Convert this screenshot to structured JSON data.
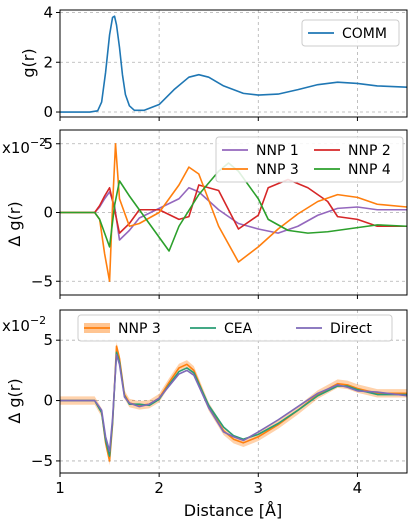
{
  "chart_data": [
    {
      "type": "line",
      "ylabel": "g(r)",
      "xlabel": "",
      "xlim": [
        1,
        4.5
      ],
      "ylim": [
        -0.2,
        4.1
      ],
      "yticks": [
        0,
        2,
        4
      ],
      "xticks": [
        1,
        2,
        3,
        4
      ],
      "ytick_labels": [
        "0",
        "2",
        "4"
      ],
      "grid": true,
      "legend_position": "top-right",
      "series": [
        {
          "name": "COMM",
          "color": "#1f77b4",
          "x": [
            1.0,
            1.3,
            1.38,
            1.42,
            1.46,
            1.5,
            1.53,
            1.55,
            1.57,
            1.6,
            1.63,
            1.66,
            1.7,
            1.75,
            1.85,
            2.0,
            2.15,
            2.3,
            2.4,
            2.5,
            2.65,
            2.85,
            3.0,
            3.2,
            3.4,
            3.6,
            3.8,
            4.0,
            4.2,
            4.5
          ],
          "y": [
            0.0,
            0.0,
            0.05,
            0.4,
            1.6,
            3.1,
            3.8,
            3.85,
            3.5,
            2.6,
            1.5,
            0.7,
            0.25,
            0.07,
            0.07,
            0.3,
            0.9,
            1.4,
            1.5,
            1.4,
            1.05,
            0.75,
            0.68,
            0.72,
            0.9,
            1.1,
            1.2,
            1.15,
            1.05,
            1.0
          ]
        }
      ]
    },
    {
      "type": "line",
      "ylabel": "Δ g(r)",
      "xlabel": "",
      "scale_label": "x10",
      "scale_exp": "−2",
      "xlim": [
        1,
        4.5
      ],
      "ylim": [
        -6,
        6
      ],
      "yticks": [
        -5,
        0,
        5
      ],
      "xticks": [
        1,
        2,
        3,
        4
      ],
      "ytick_labels": [
        "−5",
        "0",
        "5"
      ],
      "grid": true,
      "legend_position": "top-right",
      "legend_columns": 2,
      "series": [
        {
          "name": "NNP 1",
          "color": "#9467bd",
          "x": [
            1.0,
            1.35,
            1.4,
            1.45,
            1.5,
            1.55,
            1.6,
            1.7,
            1.8,
            2.0,
            2.2,
            2.3,
            2.4,
            2.6,
            2.8,
            3.0,
            3.2,
            3.4,
            3.6,
            3.8,
            4.0,
            4.2,
            4.5
          ],
          "y": [
            0,
            0,
            0.4,
            1.0,
            1.5,
            0.5,
            -2.0,
            -1.3,
            -0.4,
            0.3,
            1.0,
            1.8,
            1.5,
            0.2,
            -0.8,
            -1.2,
            -1.5,
            -1.0,
            -0.2,
            0.3,
            0.4,
            0.2,
            0.2
          ]
        },
        {
          "name": "NNP 2",
          "color": "#d62728",
          "x": [
            1.0,
            1.35,
            1.4,
            1.45,
            1.5,
            1.55,
            1.6,
            1.7,
            1.8,
            2.0,
            2.2,
            2.3,
            2.4,
            2.6,
            2.7,
            2.8,
            3.0,
            3.1,
            3.3,
            3.5,
            3.7,
            3.8,
            4.0,
            4.2,
            4.5
          ],
          "y": [
            0,
            0,
            0.5,
            1.2,
            1.8,
            0.2,
            -1.5,
            -0.8,
            0.2,
            0.2,
            -0.5,
            -0.3,
            2.0,
            1.6,
            0.2,
            -1.2,
            -0.2,
            1.8,
            2.4,
            1.8,
            0.8,
            -0.3,
            -0.5,
            -1.0,
            -1.0
          ]
        },
        {
          "name": "NNP 3",
          "color": "#ff7f0e",
          "x": [
            1.0,
            1.35,
            1.4,
            1.45,
            1.5,
            1.53,
            1.56,
            1.6,
            1.7,
            1.8,
            2.0,
            2.2,
            2.3,
            2.4,
            2.6,
            2.8,
            3.0,
            3.2,
            3.4,
            3.6,
            3.8,
            4.0,
            4.2,
            4.5
          ],
          "y": [
            0,
            0,
            -0.5,
            -3.0,
            -5.0,
            0.5,
            5.0,
            1.0,
            -1.0,
            -0.8,
            0.0,
            2.0,
            3.3,
            2.8,
            -1.0,
            -3.6,
            -2.5,
            -1.2,
            -0.1,
            0.8,
            1.3,
            1.1,
            0.6,
            0.4
          ]
        },
        {
          "name": "NNP 4",
          "color": "#2ca02c",
          "x": [
            1.0,
            1.35,
            1.4,
            1.45,
            1.5,
            1.55,
            1.6,
            1.7,
            1.8,
            2.0,
            2.1,
            2.2,
            2.4,
            2.6,
            2.7,
            2.8,
            3.0,
            3.1,
            3.3,
            3.5,
            3.7,
            4.0,
            4.2,
            4.5
          ],
          "y": [
            0,
            0,
            -0.5,
            -1.5,
            -2.5,
            0.5,
            2.3,
            1.2,
            0.2,
            -1.8,
            -2.8,
            -1.0,
            1.3,
            3.0,
            3.6,
            3.0,
            1.0,
            -0.5,
            -1.3,
            -1.5,
            -1.4,
            -1.1,
            -0.9,
            -1.0
          ]
        }
      ]
    },
    {
      "type": "line",
      "ylabel": "Δ g(r)",
      "xlabel": "Distance [Å]",
      "scale_label": "x10",
      "scale_exp": "−2",
      "xlim": [
        1,
        4.5
      ],
      "ylim": [
        -6,
        7.5
      ],
      "yticks": [
        -5,
        0,
        5
      ],
      "xticks": [
        1,
        2,
        3,
        4
      ],
      "ytick_labels": [
        "−5",
        "0",
        "5"
      ],
      "xtick_labels": [
        "1",
        "2",
        "3",
        "4"
      ],
      "grid": true,
      "legend_position": "top",
      "legend_columns": 3,
      "series": [
        {
          "name": "NNP 3",
          "color": "#ff7f0e",
          "band": true,
          "x": [
            1.0,
            1.35,
            1.42,
            1.46,
            1.5,
            1.53,
            1.57,
            1.6,
            1.65,
            1.7,
            1.8,
            1.9,
            2.0,
            2.1,
            2.2,
            2.28,
            2.35,
            2.5,
            2.65,
            2.75,
            2.85,
            3.0,
            3.2,
            3.4,
            3.6,
            3.8,
            3.9,
            4.0,
            4.2,
            4.5
          ],
          "y": [
            0,
            0,
            -1.0,
            -3.5,
            -5.0,
            -2.0,
            4.5,
            3.5,
            0.5,
            -0.2,
            -0.4,
            -0.3,
            0.2,
            1.5,
            2.7,
            3.0,
            2.5,
            -0.5,
            -2.5,
            -3.2,
            -3.5,
            -3.0,
            -2.0,
            -0.8,
            0.5,
            1.4,
            1.3,
            1.0,
            0.6,
            0.6
          ]
        },
        {
          "name": "CEA",
          "color": "#2a9d74",
          "x": [
            1.0,
            1.35,
            1.42,
            1.46,
            1.5,
            1.53,
            1.57,
            1.6,
            1.65,
            1.7,
            1.8,
            1.9,
            2.0,
            2.1,
            2.2,
            2.28,
            2.35,
            2.5,
            2.65,
            2.75,
            2.85,
            3.0,
            3.2,
            3.4,
            3.6,
            3.8,
            3.9,
            4.0,
            4.2,
            4.5
          ],
          "y": [
            0,
            0,
            -1.0,
            -3.3,
            -4.6,
            -1.8,
            4.0,
            3.2,
            0.4,
            -0.3,
            -0.3,
            -0.4,
            0.1,
            1.3,
            2.4,
            2.7,
            2.3,
            -0.4,
            -2.2,
            -2.9,
            -3.2,
            -2.8,
            -1.9,
            -0.8,
            0.4,
            1.2,
            1.2,
            0.9,
            0.5,
            0.5
          ]
        },
        {
          "name": "Direct",
          "color": "#7e6ab8",
          "x": [
            1.0,
            1.35,
            1.42,
            1.46,
            1.5,
            1.53,
            1.57,
            1.6,
            1.65,
            1.7,
            1.8,
            1.9,
            2.0,
            2.1,
            2.2,
            2.28,
            2.35,
            2.5,
            2.65,
            2.75,
            2.85,
            3.0,
            3.2,
            3.4,
            3.6,
            3.8,
            3.9,
            4.0,
            4.2,
            4.5
          ],
          "y": [
            0,
            0,
            -0.8,
            -3.0,
            -4.2,
            -1.5,
            3.8,
            3.0,
            0.3,
            -0.2,
            -0.5,
            -0.3,
            0.2,
            1.2,
            2.2,
            2.5,
            2.1,
            -0.6,
            -2.6,
            -3.0,
            -3.3,
            -2.6,
            -1.6,
            -0.5,
            0.6,
            1.3,
            1.1,
            0.8,
            0.7,
            0.4
          ]
        }
      ]
    }
  ]
}
